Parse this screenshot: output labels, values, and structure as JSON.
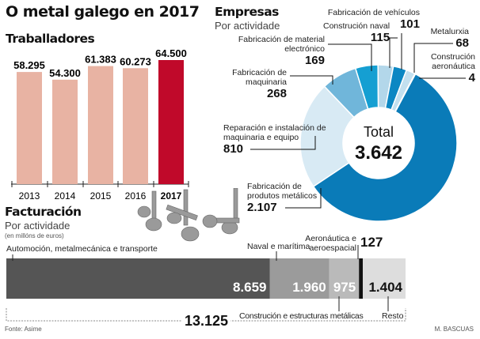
{
  "title": "O metal galego en 2017",
  "source": "Fonte: Asime",
  "author": "M. BASCUAS",
  "chart_data": [
    {
      "type": "bar",
      "title": "Traballadores",
      "categories": [
        "2013",
        "2014",
        "2015",
        "2016",
        "2017"
      ],
      "values": [
        58295,
        54300,
        61383,
        60273,
        64500
      ],
      "value_labels": [
        "58.295",
        "54.300",
        "61.383",
        "60.273",
        "64.500"
      ],
      "colors": [
        "#e8b3a3",
        "#e8b3a3",
        "#e8b3a3",
        "#e8b3a3",
        "#c0092a"
      ],
      "ylim": [
        0,
        64500
      ]
    },
    {
      "type": "pie",
      "title": "Empresas",
      "subtitle": "Por actividade",
      "center_label": "Total",
      "center_value": "3.642",
      "slices": [
        {
          "label": "Fabricación de produtos metálicos",
          "value": 2107,
          "value_label": "2.107",
          "color": "#0a7bb8"
        },
        {
          "label": "Reparación e instalación de maquinaria e equipo",
          "value": 810,
          "value_label": "810",
          "color": "#d8eaf4"
        },
        {
          "label": "Fabricación de maquinaria",
          "value": 268,
          "value_label": "268",
          "color": "#70b6da"
        },
        {
          "label": "Fabricación de material electrónico",
          "value": 169,
          "value_label": "169",
          "color": "#159fd2"
        },
        {
          "label": "Construción naval",
          "value": 115,
          "value_label": "115",
          "color": "#b3d7ea"
        },
        {
          "label": "Fabricación de vehículos",
          "value": 101,
          "value_label": "101",
          "color": "#0b87c3"
        },
        {
          "label": "Metalurxia",
          "value": 68,
          "value_label": "68",
          "color": "#c3e0ef"
        },
        {
          "label": "Construción aeronáutica",
          "value": 4,
          "value_label": "4",
          "color": "#1e90c8"
        }
      ]
    },
    {
      "type": "bar",
      "orientation": "stacked-horizontal",
      "title": "Facturación",
      "subtitle": "Por actividade",
      "unit": "(en millóns de euros)",
      "total": 13125,
      "total_label": "13.125",
      "segments": [
        {
          "label": "Automoción, metalmecánica e transporte",
          "value": 8659,
          "value_label": "8.659",
          "color": "#555555"
        },
        {
          "label": "Naval e marítima",
          "value": 1960,
          "value_label": "1.960",
          "color": "#9b9b9b"
        },
        {
          "label": "Construción e estructuras metálicas",
          "value": 975,
          "value_label": "975",
          "color": "#bababa"
        },
        {
          "label": "Aeronáutica e aeroespacial",
          "value": 127,
          "value_label": "127",
          "color": "#111111"
        },
        {
          "label": "Resto",
          "value": 1404,
          "value_label": "1.404",
          "color": "#dddddd"
        }
      ]
    }
  ]
}
